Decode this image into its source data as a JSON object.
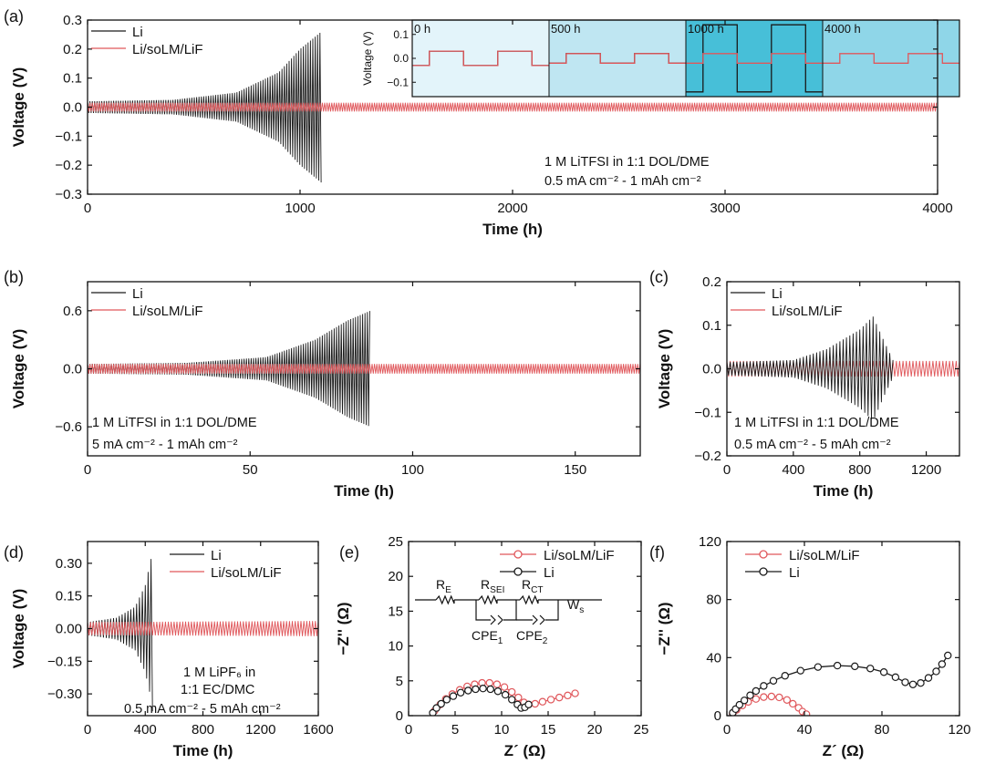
{
  "colors": {
    "li": "#1a1a1a",
    "coated": "#e0575b",
    "inset_band1": "#e3f4fa",
    "inset_band2": "#bfe6f2",
    "inset_band3": "#47bfd8",
    "inset_band4": "#8fd6e8"
  },
  "chart_data": [
    {
      "id": "a",
      "panel_label": "(a)",
      "type": "line",
      "xlabel": "Time (h)",
      "ylabel": "Voltage (V)",
      "xlim": [
        0,
        4000
      ],
      "ylim": [
        -0.3,
        0.3
      ],
      "xticks": [
        0,
        1000,
        2000,
        3000,
        4000
      ],
      "xtick_labels": [
        "0",
        "1000",
        "2000",
        "3000",
        "4000"
      ],
      "yticks": [
        -0.3,
        -0.2,
        -0.1,
        0.0,
        0.1,
        0.2,
        0.3
      ],
      "ytick_labels": [
        "−0.3",
        "−0.2",
        "−0.1",
        "0.0",
        "0.1",
        "0.2",
        "0.3"
      ],
      "legend": "top-left",
      "series": [
        {
          "name": "Li",
          "style": "osc",
          "color": "li",
          "t_end": 1100,
          "env_t": [
            0,
            400,
            700,
            900,
            1000,
            1100
          ],
          "env_v": [
            0.02,
            0.025,
            0.05,
            0.12,
            0.2,
            0.26
          ],
          "period": 10
        },
        {
          "name": "Li/soLM/LiF",
          "style": "osc",
          "color": "coated",
          "t_end": 4000,
          "env_t": [
            0,
            4000
          ],
          "env_v": [
            0.015,
            0.015
          ],
          "period": 10
        }
      ],
      "annotations": [
        "1 M LiTFSI in 1:1 DOL/DME",
        "0.5 mA cm⁻² - 1 mAh cm⁻²"
      ],
      "inset": {
        "ylabel": "Voltage (V)",
        "ylim": [
          -0.16,
          0.16
        ],
        "yticks": [
          -0.1,
          0.0,
          0.1
        ],
        "ytick_labels": [
          "−0.1",
          "0.0",
          "0.1"
        ],
        "segment_labels": [
          "0 h",
          "500 h",
          "1000 h",
          "4000 h"
        ]
      }
    },
    {
      "id": "b",
      "panel_label": "(b)",
      "type": "line",
      "xlabel": "Time (h)",
      "ylabel": "Voltage (V)",
      "xlim": [
        0,
        170
      ],
      "ylim": [
        -0.9,
        0.9
      ],
      "xticks": [
        0,
        50,
        100,
        150
      ],
      "xtick_labels": [
        "0",
        "50",
        "100",
        "150"
      ],
      "yticks": [
        -0.6,
        0.0,
        0.6
      ],
      "ytick_labels": [
        "−0.6",
        "0.0",
        "0.6"
      ],
      "legend": "top-left",
      "series": [
        {
          "name": "Li",
          "style": "osc",
          "color": "li",
          "t_end": 87,
          "env_t": [
            0,
            30,
            55,
            70,
            80,
            87
          ],
          "env_v": [
            0.05,
            0.06,
            0.12,
            0.3,
            0.5,
            0.6
          ],
          "period": 0.4
        },
        {
          "name": "Li/soLM/LiF",
          "style": "osc",
          "color": "coated",
          "t_end": 170,
          "env_t": [
            0,
            170
          ],
          "env_v": [
            0.05,
            0.05
          ],
          "period": 0.4
        }
      ],
      "annotations": [
        "1 M LiTFSI in 1:1 DOL/DME",
        "5 mA cm⁻² - 1 mAh cm⁻²"
      ]
    },
    {
      "id": "c",
      "panel_label": "(c)",
      "type": "line",
      "xlabel": "Time (h)",
      "ylabel": "Voltage (V)",
      "xlim": [
        0,
        1400
      ],
      "ylim": [
        -0.2,
        0.2
      ],
      "xticks": [
        0,
        400,
        800,
        1200
      ],
      "xtick_labels": [
        "0",
        "400",
        "800",
        "1200"
      ],
      "yticks": [
        -0.2,
        -0.1,
        0.0,
        0.1,
        0.2
      ],
      "ytick_labels": [
        "−0.2",
        "−0.1",
        "0.0",
        "0.1",
        "0.2"
      ],
      "legend": "top-left",
      "series": [
        {
          "name": "Li/soLM/LiF",
          "style": "osc",
          "color": "coated",
          "t_end": 1400,
          "env_t": [
            0,
            1400
          ],
          "env_v": [
            0.018,
            0.018
          ],
          "period": 20
        },
        {
          "name": "Li",
          "style": "osc",
          "color": "li",
          "t_end": 1000,
          "env_t": [
            0,
            400,
            600,
            800,
            880,
            950,
            1000
          ],
          "env_v": [
            0.015,
            0.02,
            0.045,
            0.09,
            0.12,
            0.06,
            0.02
          ],
          "period": 20
        }
      ],
      "annotations": [
        "1 M LiTFSI in 1:1 DOL/DME",
        "0.5 mA cm⁻² - 5 mAh cm⁻²"
      ]
    },
    {
      "id": "d",
      "panel_label": "(d)",
      "type": "line",
      "xlabel": "Time (h)",
      "ylabel": "Voltage (V)",
      "xlim": [
        0,
        1600
      ],
      "ylim": [
        -0.4,
        0.4
      ],
      "xticks": [
        0,
        400,
        800,
        1200,
        1600
      ],
      "xtick_labels": [
        "0",
        "400",
        "800",
        "1200",
        "1600"
      ],
      "yticks": [
        -0.3,
        -0.15,
        0.0,
        0.15,
        0.3
      ],
      "ytick_labels": [
        "−0.30",
        "−0.15",
        "0.00",
        "0.15",
        "0.30"
      ],
      "legend": "top-right",
      "series": [
        {
          "name": "Li",
          "style": "osc",
          "color": "li",
          "t_end": 450,
          "env_t": [
            0,
            200,
            330,
            400,
            440,
            450
          ],
          "env_v": [
            0.03,
            0.05,
            0.1,
            0.2,
            0.32,
            0.38
          ],
          "period": 20
        },
        {
          "name": "Li/soLM/LiF",
          "style": "osc",
          "color": "coated",
          "t_end": 1600,
          "env_t": [
            0,
            1600
          ],
          "env_v": [
            0.03,
            0.035
          ],
          "period": 20
        }
      ],
      "annotations": [
        "1 M LiPF₆ in",
        "1:1 EC/DMC",
        "0.5 mA cm⁻² - 5 mAh cm⁻²"
      ]
    },
    {
      "id": "e",
      "panel_label": "(e)",
      "type": "scatter",
      "xlabel": "Z´ (Ω)",
      "ylabel": "−Z'' (Ω)",
      "xlim": [
        0,
        25
      ],
      "ylim": [
        0,
        25
      ],
      "xticks": [
        0,
        5,
        10,
        15,
        20,
        25
      ],
      "xtick_labels": [
        "0",
        "5",
        "10",
        "15",
        "20",
        "25"
      ],
      "yticks": [
        0,
        5,
        10,
        15,
        20,
        25
      ],
      "ytick_labels": [
        "0",
        "5",
        "10",
        "15",
        "20",
        "25"
      ],
      "legend": "top-right",
      "series": [
        {
          "name": "Li/soLM/LiF",
          "color": "coated",
          "x": [
            2.8,
            3.4,
            4.0,
            4.7,
            5.5,
            6.3,
            7.1,
            7.9,
            8.7,
            9.5,
            10.3,
            11.1,
            11.8,
            12.4,
            12.9,
            13.6,
            14.4,
            15.3,
            16.2,
            17.1,
            17.9
          ],
          "y": [
            0.7,
            1.6,
            2.4,
            3.1,
            3.7,
            4.2,
            4.5,
            4.7,
            4.7,
            4.5,
            4.1,
            3.4,
            2.6,
            1.9,
            1.6,
            1.7,
            2.0,
            2.3,
            2.6,
            2.9,
            3.2
          ]
        },
        {
          "name": "Li",
          "color": "li",
          "x": [
            2.6,
            3.0,
            3.5,
            4.1,
            4.8,
            5.6,
            6.4,
            7.2,
            8.0,
            8.8,
            9.6,
            10.4,
            11.1,
            11.7,
            12.1,
            12.5,
            12.9
          ],
          "y": [
            0.4,
            1.1,
            1.7,
            2.3,
            2.8,
            3.3,
            3.6,
            3.8,
            3.9,
            3.8,
            3.5,
            3.0,
            2.3,
            1.6,
            1.1,
            1.2,
            1.6
          ]
        }
      ],
      "circuit": {
        "r_e": "R",
        "r_e_sub": "E",
        "r_sei": "R",
        "r_sei_sub": "SEI",
        "r_ct": "R",
        "r_ct_sub": "CT",
        "w": "W",
        "w_sub": "s",
        "cpe1": "CPE",
        "cpe1_sub": "1",
        "cpe2": "CPE",
        "cpe2_sub": "2"
      }
    },
    {
      "id": "f",
      "panel_label": "(f)",
      "type": "scatter",
      "xlabel": "Z´ (Ω)",
      "ylabel": "−Z'' (Ω)",
      "xlim": [
        0,
        120
      ],
      "ylim": [
        0,
        120
      ],
      "xticks": [
        0,
        40,
        80,
        120
      ],
      "xtick_labels": [
        "0",
        "40",
        "80",
        "120"
      ],
      "yticks": [
        0,
        40,
        80,
        120
      ],
      "ytick_labels": [
        "0",
        "40",
        "80",
        "120"
      ],
      "legend": "top-center",
      "series": [
        {
          "name": "Li/soLM/LiF",
          "color": "coated",
          "x": [
            3,
            5,
            8,
            11,
            15,
            19,
            23,
            27,
            31,
            34,
            37,
            39,
            41
          ],
          "y": [
            1.5,
            4,
            7,
            9.5,
            11.5,
            12.8,
            13.2,
            12.6,
            10.8,
            8.2,
            5.4,
            2.8,
            1.0
          ]
        },
        {
          "name": "Li",
          "color": "li",
          "x": [
            3,
            4.5,
            6.5,
            9,
            12,
            15,
            19,
            24,
            30,
            38,
            47,
            57,
            66,
            74,
            81,
            87,
            92,
            96,
            100,
            104,
            108,
            111,
            114
          ],
          "y": [
            2,
            4.5,
            7.5,
            10.5,
            14,
            17,
            20.5,
            24,
            27.5,
            31,
            33.5,
            34.5,
            34,
            32.5,
            30,
            26.5,
            23,
            21.5,
            22.5,
            26,
            30.5,
            35.5,
            41.5
          ]
        }
      ]
    }
  ]
}
